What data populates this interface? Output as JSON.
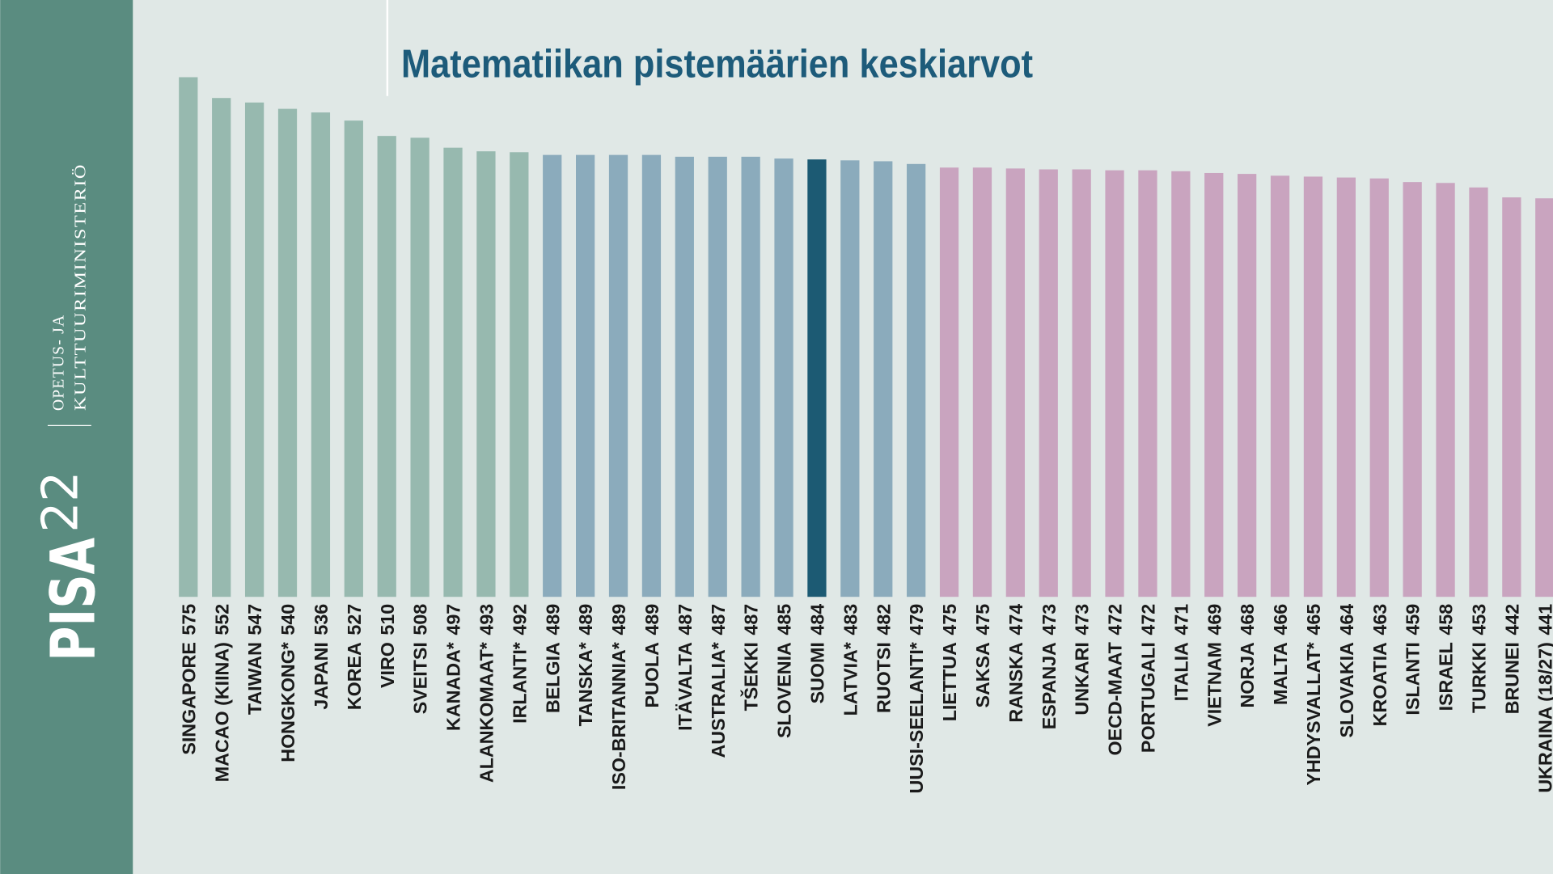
{
  "chart_data": {
    "type": "bar",
    "title": "Matematiikan pistemäärien keskiarvot",
    "categories": [
      "SINGAPORE",
      "MACAO (KIINA)",
      "TAIWAN",
      "HONGKONG*",
      "JAPANI",
      "KOREA",
      "VIRO",
      "SVEITSI",
      "KANADA*",
      "ALANKOMAAT*",
      "IRLANTI*",
      "BELGIA",
      "TANSKA*",
      "ISO-BRITANNIA*",
      "PUOLA",
      "ITÄVALTA",
      "AUSTRALIA*",
      "TŠEKKI",
      "SLOVENIA",
      "SUOMI",
      "LATVIA*",
      "RUOTSI",
      "UUSI-SEELANTI*",
      "LIETTUA",
      "SAKSA",
      "RANSKA",
      "ESPANJA",
      "UNKARI",
      "OECD-MAAT",
      "PORTUGALI",
      "ITALIA",
      "VIETNAM",
      "NORJA",
      "MALTA",
      "YHDYSVALLAT*",
      "SLOVAKIA",
      "KROATIA",
      "ISLANTI",
      "ISRAEL",
      "TURKKI",
      "BRUNEI",
      "UKRAINA (18/27)"
    ],
    "values": [
      575,
      552,
      547,
      540,
      536,
      527,
      510,
      508,
      497,
      493,
      492,
      489,
      489,
      489,
      489,
      487,
      487,
      487,
      485,
      484,
      483,
      482,
      479,
      475,
      475,
      474,
      473,
      473,
      472,
      472,
      471,
      469,
      468,
      466,
      465,
      464,
      463,
      459,
      458,
      453,
      442,
      441
    ],
    "colors": [
      "#97b9af",
      "#97b9af",
      "#97b9af",
      "#97b9af",
      "#97b9af",
      "#97b9af",
      "#97b9af",
      "#97b9af",
      "#97b9af",
      "#97b9af",
      "#97b9af",
      "#8babbc",
      "#8babbc",
      "#8babbc",
      "#8babbc",
      "#8babbc",
      "#8babbc",
      "#8babbc",
      "#8babbc",
      "#1c5a73",
      "#8babbc",
      "#8babbc",
      "#8babbc",
      "#c9a4bf",
      "#c9a4bf",
      "#c9a4bf",
      "#c9a4bf",
      "#c9a4bf",
      "#c9a4bf",
      "#c9a4bf",
      "#c9a4bf",
      "#c9a4bf",
      "#c9a4bf",
      "#c9a4bf",
      "#c9a4bf",
      "#c9a4bf",
      "#c9a4bf",
      "#c9a4bf",
      "#c9a4bf",
      "#c9a4bf",
      "#c9a4bf",
      "#c9a4bf"
    ],
    "ylim": [
      0,
      575
    ]
  },
  "branding": {
    "brand": "PISA",
    "edition": "22",
    "ministry": [
      "OPETUS- JA",
      "KULTTUURIMINISTERIÖ"
    ]
  }
}
